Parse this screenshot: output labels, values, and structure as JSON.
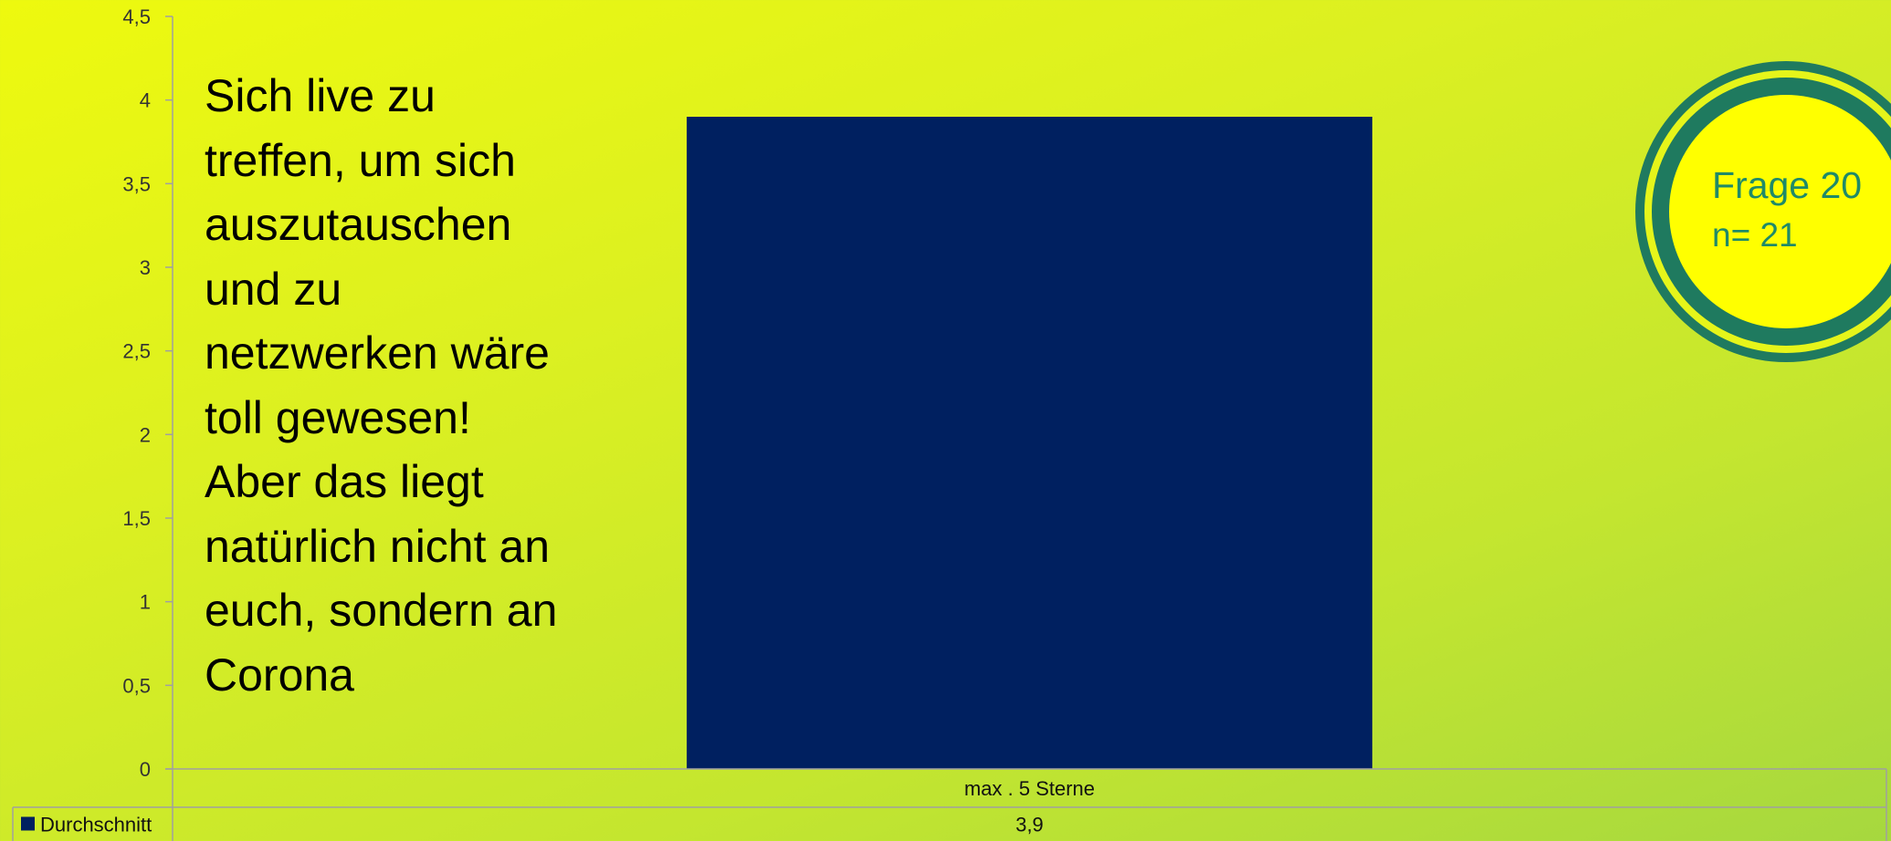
{
  "chart_data": {
    "type": "bar",
    "categories": [
      "max . 5 Sterne"
    ],
    "series": [
      {
        "name": "Durchschnitt",
        "values": [
          3.9
        ],
        "color": "#002060"
      }
    ],
    "value_labels": [
      "3,9"
    ],
    "ylim": [
      0,
      4.5
    ],
    "y_ticks": [
      {
        "value": 0,
        "label": "0"
      },
      {
        "value": 0.5,
        "label": "0,5"
      },
      {
        "value": 1,
        "label": "1"
      },
      {
        "value": 1.5,
        "label": "1,5"
      },
      {
        "value": 2,
        "label": "2"
      },
      {
        "value": 2.5,
        "label": "2,5"
      },
      {
        "value": 3,
        "label": "3"
      },
      {
        "value": 3.5,
        "label": "3,5"
      },
      {
        "value": 4,
        "label": "4"
      },
      {
        "value": 4.5,
        "label": "4,5"
      }
    ],
    "grid": false,
    "legend": "data table below chart",
    "title": "",
    "xlabel": "",
    "ylabel": ""
  },
  "quote": {
    "text": "Sich live zu\ntreffen, um sich\nauszutauschen\nund zu\nnetzwerken wäre\ntoll gewesen!\nAber das liegt\nnatürlich nicht an\neuch, sondern an\nCorona"
  },
  "badge": {
    "title": "Frage 20",
    "n_label": "n= 21"
  },
  "colors": {
    "bar": "#002060",
    "badge_ring": "#1f7a5f",
    "badge_fill": "#ffff00",
    "badge_text": "#1f8a68",
    "axis": "#a0a0a0"
  }
}
